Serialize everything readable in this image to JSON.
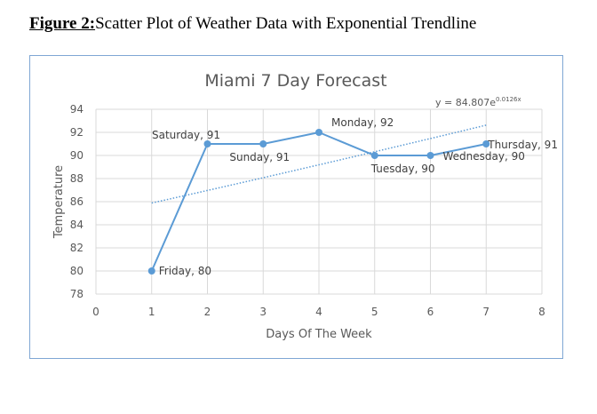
{
  "caption": {
    "label": "Figure 2:",
    "text": "Scatter Plot of Weather Data with Exponential Trendline"
  },
  "chart_data": {
    "type": "scatter",
    "title": "Miami 7 Day Forecast",
    "xlabel": "Days Of The Week",
    "ylabel": "Temperature",
    "xlim": [
      0,
      8
    ],
    "ylim": [
      78,
      94
    ],
    "xticks": [
      0,
      1,
      2,
      3,
      4,
      5,
      6,
      7,
      8
    ],
    "yticks": [
      78,
      80,
      82,
      84,
      86,
      88,
      90,
      92,
      94
    ],
    "grid": true,
    "series_color": "#5b9bd5",
    "x": [
      1,
      2,
      3,
      4,
      5,
      6,
      7
    ],
    "y": [
      80,
      91,
      91,
      92,
      90,
      90,
      91
    ],
    "point_labels": [
      "Friday, 80",
      "Saturday, 91",
      "Sunday, 91",
      "Monday, 92",
      "Tuesday, 90",
      "Wednesday, 90",
      "Thursday, 91"
    ],
    "trendline": {
      "type": "exponential",
      "a": 84.807,
      "b": 0.0126,
      "equation_base": "y = 84.807e",
      "equation_exp": "0.0126x",
      "x_range": [
        1,
        7
      ]
    }
  }
}
